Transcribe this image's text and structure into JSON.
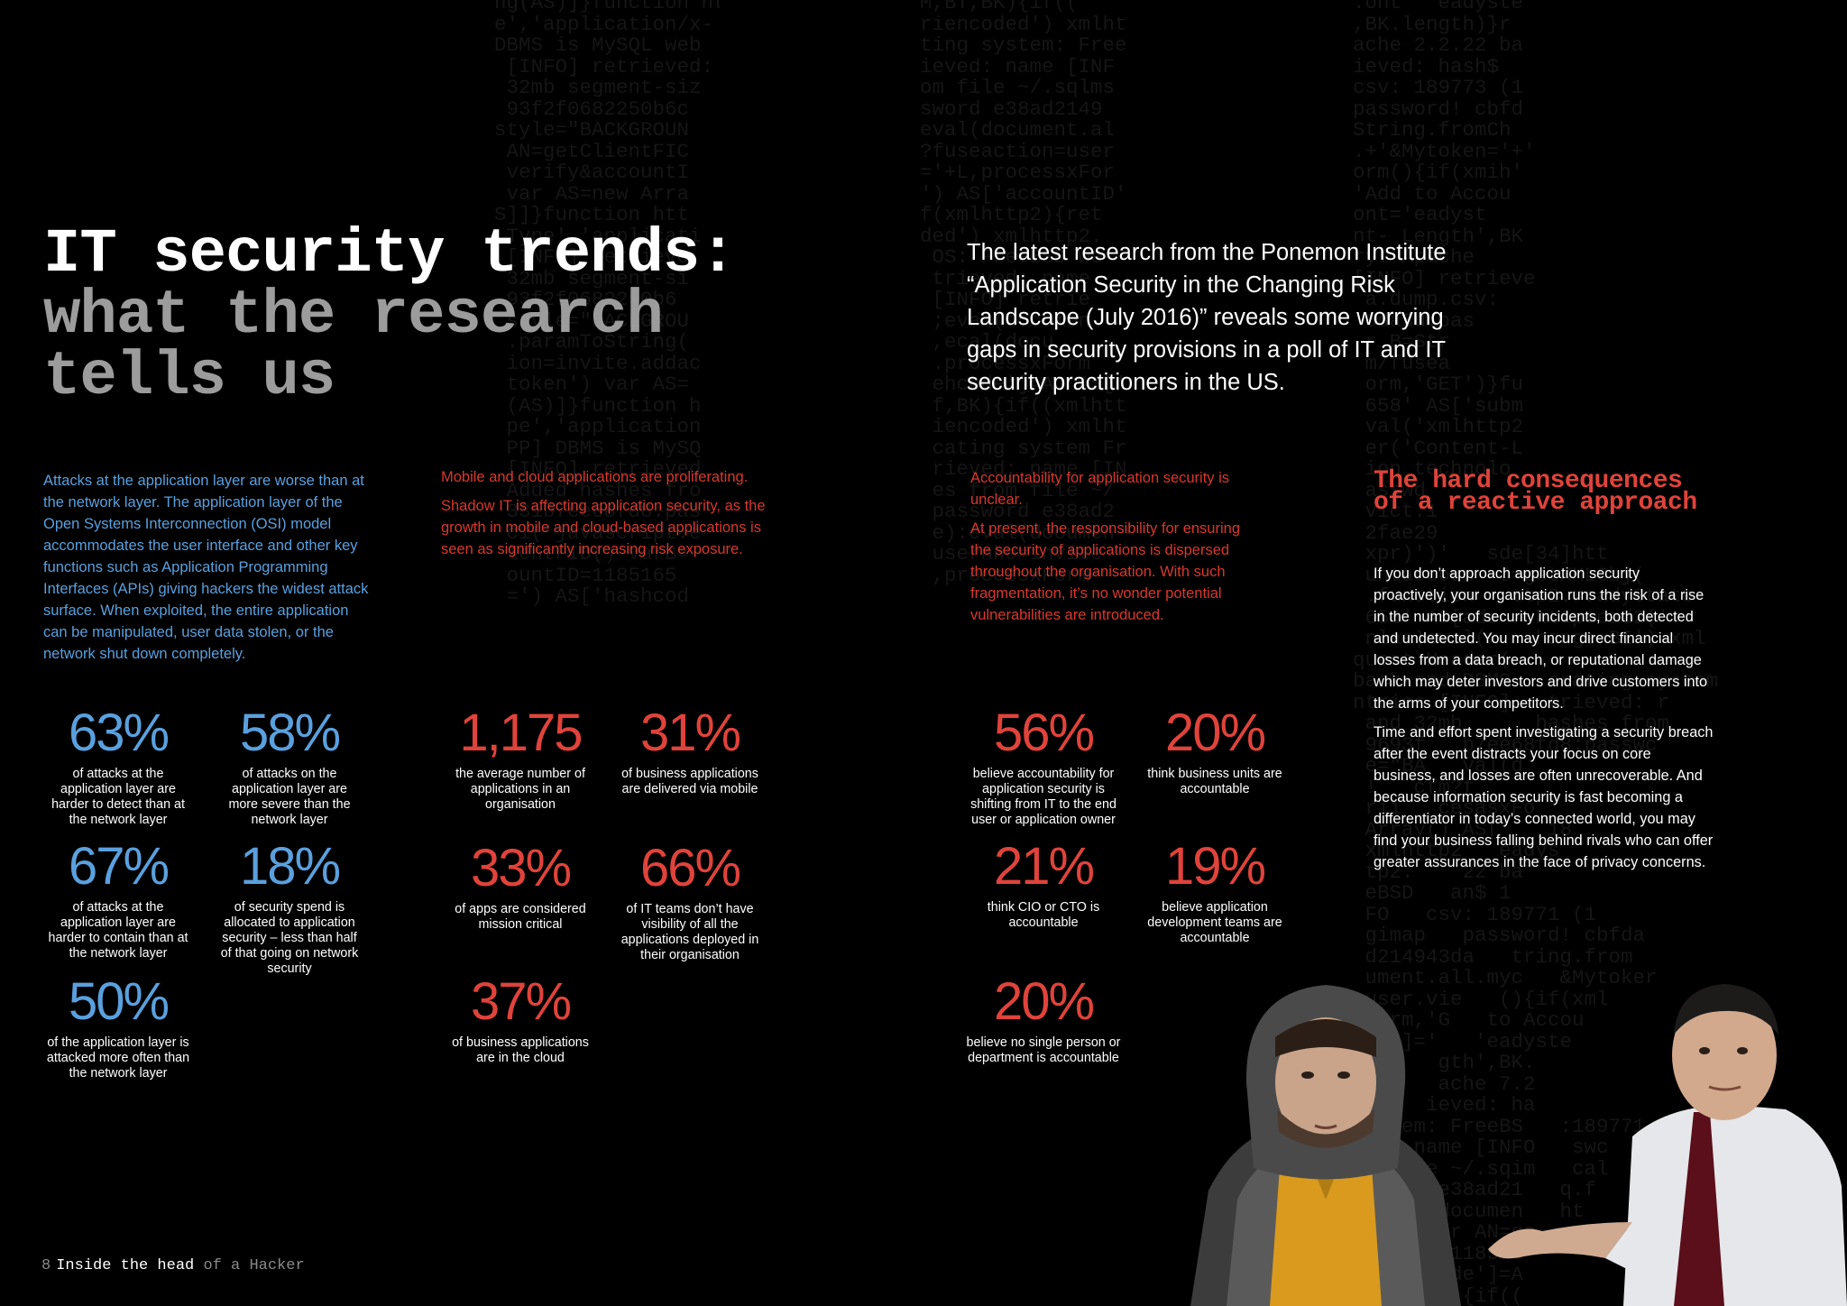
{
  "header": {
    "title_line1": "IT security trends:",
    "title_line2": "what the research",
    "title_line3": "tells us",
    "intro": "The latest research from the Ponemon Institute “Application Security in the Changing Risk Landscape (July 2016)” reveals some worrying gaps in security provisions in a poll of IT and IT security practitioners in the US."
  },
  "columns": {
    "osi_text": "Attacks at the application layer are worse than at the network layer. The application layer of the Open Systems Interconnection (OSI) model accommodates the user interface and other key functions such as Application Programming Interfaces (APIs) giving hackers the widest attack surface. When exploited, the entire application can be manipulated, user data stolen, or the network shut down completely.",
    "mobile_heading": "Mobile and cloud applications are proliferating.",
    "mobile_text": "Shadow IT is affecting application security, as the growth in mobile and cloud-based applications is seen as significantly increasing risk exposure.",
    "accountability_heading": "Accountability for application security is unclear.",
    "accountability_text": "At present, the responsibility for ensuring the security of applications is dispersed throughout the organisation. With such fragmentation, it’s no wonder potential vulnerabilities are introduced."
  },
  "hard": {
    "title": "The hard consequences of a reactive approach",
    "p1": "If you don’t approach application security proactively, your organisation runs the risk of a rise in the number of security incidents, both detected and undetected. You may incur direct financial losses from a data breach, or reputational damage which may deter investors and drive customers into the arms of your competitors.",
    "p2": "Time and effort spent investigating a security breach after the event distracts your focus on core business, and losses are often unrecoverable. And because information security is fast becoming a differentiator in today’s connected world, you may find your business falling behind rivals who can offer greater assurances in the face of privacy concerns."
  },
  "stats": {
    "s1": {
      "value": "63%",
      "label": "of attacks at the application layer are harder to detect than at the network layer"
    },
    "s2": {
      "value": "58%",
      "label": "of attacks on the application layer are more severe than the network layer"
    },
    "s3": {
      "value": "67%",
      "label": "of attacks at the application layer are harder to contain than at the network layer"
    },
    "s4": {
      "value": "18%",
      "label": "of security spend is allocated to application security – less than half of that going on network security"
    },
    "s5": {
      "value": "50%",
      "label": "of the application layer is attacked more often than the network layer"
    },
    "s6": {
      "value": "1,175",
      "label": "the average number of applications in an organisation"
    },
    "s7": {
      "value": "31%",
      "label": "of business applications are delivered via mobile"
    },
    "s8": {
      "value": "33%",
      "label": "of apps are considered mission critical"
    },
    "s9": {
      "value": "66%",
      "label": "of IT teams don’t have visibility of all the applications deployed in their organisation"
    },
    "s10": {
      "value": "37%",
      "label": "of business applications are in the cloud"
    },
    "s11": {
      "value": "56%",
      "label": "believe accountability for application security is shifting from IT to the end user or application owner"
    },
    "s12": {
      "value": "20%",
      "label": "think business units are accountable"
    },
    "s13": {
      "value": "21%",
      "label": "think CIO or CTO is accountable"
    },
    "s14": {
      "value": "19%",
      "label": "believe application development teams are accountable"
    },
    "s15": {
      "value": "20%",
      "label": "believe no single person or department is accountable"
    }
  },
  "footer": {
    "page_number": "8",
    "text_main": "Inside the head",
    "text_dim": "of a Hacker"
  },
  "colors": {
    "background": "#000000",
    "accent_blue": "#5aa0de",
    "accent_red": "#e0433b",
    "title_grey": "#9c9c9c"
  }
}
